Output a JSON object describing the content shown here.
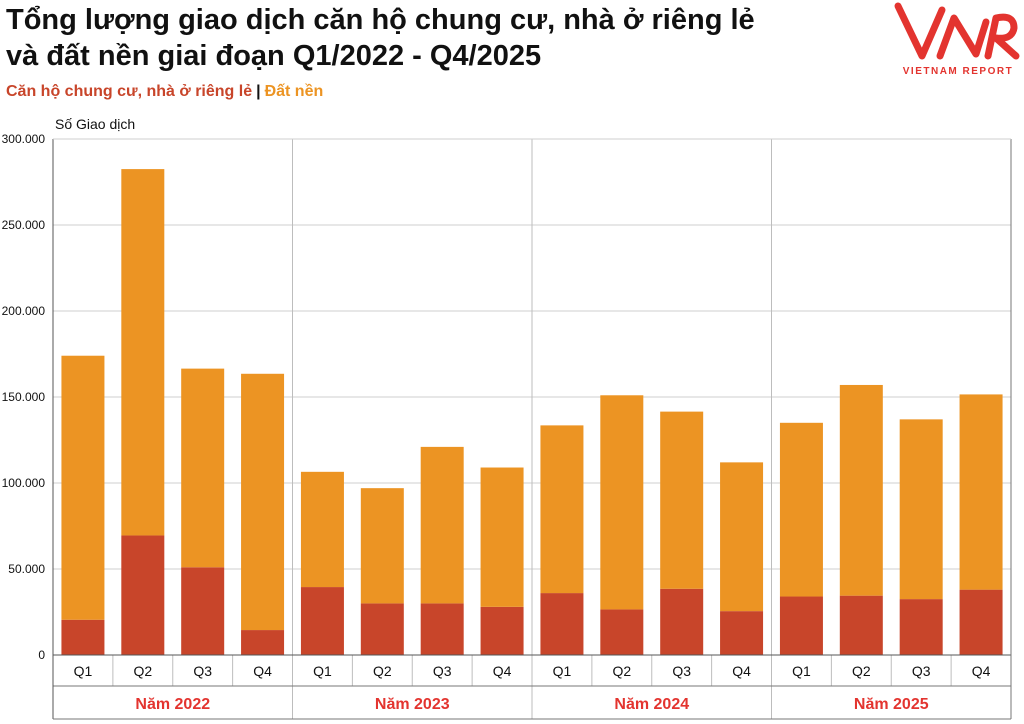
{
  "title_lines": [
    "Tổng lượng giao dịch căn hộ chung cư, nhà ở riêng lẻ",
    "và đất nền giai đoạn Q1/2022 - Q4/2025"
  ],
  "subtitle": {
    "series1": "Căn hộ chung cư, nhà ở riêng lẻ",
    "separator": "|",
    "series2": "Đất nền"
  },
  "logo": {
    "text": "VIETNAM REPORT",
    "color": "#e3342f"
  },
  "chart_data": {
    "type": "bar",
    "stacked": true,
    "ylabel": "Số Giao dịch",
    "ylim": [
      0,
      300000
    ],
    "yticks": [
      0,
      50000,
      100000,
      150000,
      200000,
      250000,
      300000
    ],
    "ytick_labels": [
      "0",
      "50.000",
      "100.000",
      "150.000",
      "200.000",
      "250.000",
      "300.000"
    ],
    "categories": [
      "Q1",
      "Q2",
      "Q3",
      "Q4",
      "Q1",
      "Q2",
      "Q3",
      "Q4",
      "Q1",
      "Q2",
      "Q3",
      "Q4",
      "Q1",
      "Q2",
      "Q3",
      "Q4"
    ],
    "groups": [
      {
        "label": "Năm 2022",
        "count": 4
      },
      {
        "label": "Năm 2023",
        "count": 4
      },
      {
        "label": "Năm 2024",
        "count": 4
      },
      {
        "label": "Năm 2025",
        "count": 4
      }
    ],
    "totals": [
      174000,
      282500,
      166500,
      163500,
      106500,
      97000,
      121000,
      109000,
      133500,
      151000,
      141500,
      112000,
      135000,
      157000,
      137000,
      151500
    ],
    "series": [
      {
        "name": "Căn hộ chung cư, nhà ở riêng lẻ",
        "color": "#c8452a",
        "values": [
          20500,
          69500,
          51000,
          14500,
          39500,
          30000,
          30000,
          28000,
          36000,
          26500,
          38500,
          25500,
          34000,
          34500,
          32500,
          38000
        ]
      },
      {
        "name": "Đất nền",
        "color": "#ec9423",
        "values": [
          153500,
          213000,
          115500,
          149000,
          67000,
          67000,
          91000,
          81000,
          97500,
          124500,
          103000,
          86500,
          101000,
          122500,
          104500,
          113500
        ]
      }
    ],
    "grid": true,
    "group_label_color": "#e3342f"
  }
}
